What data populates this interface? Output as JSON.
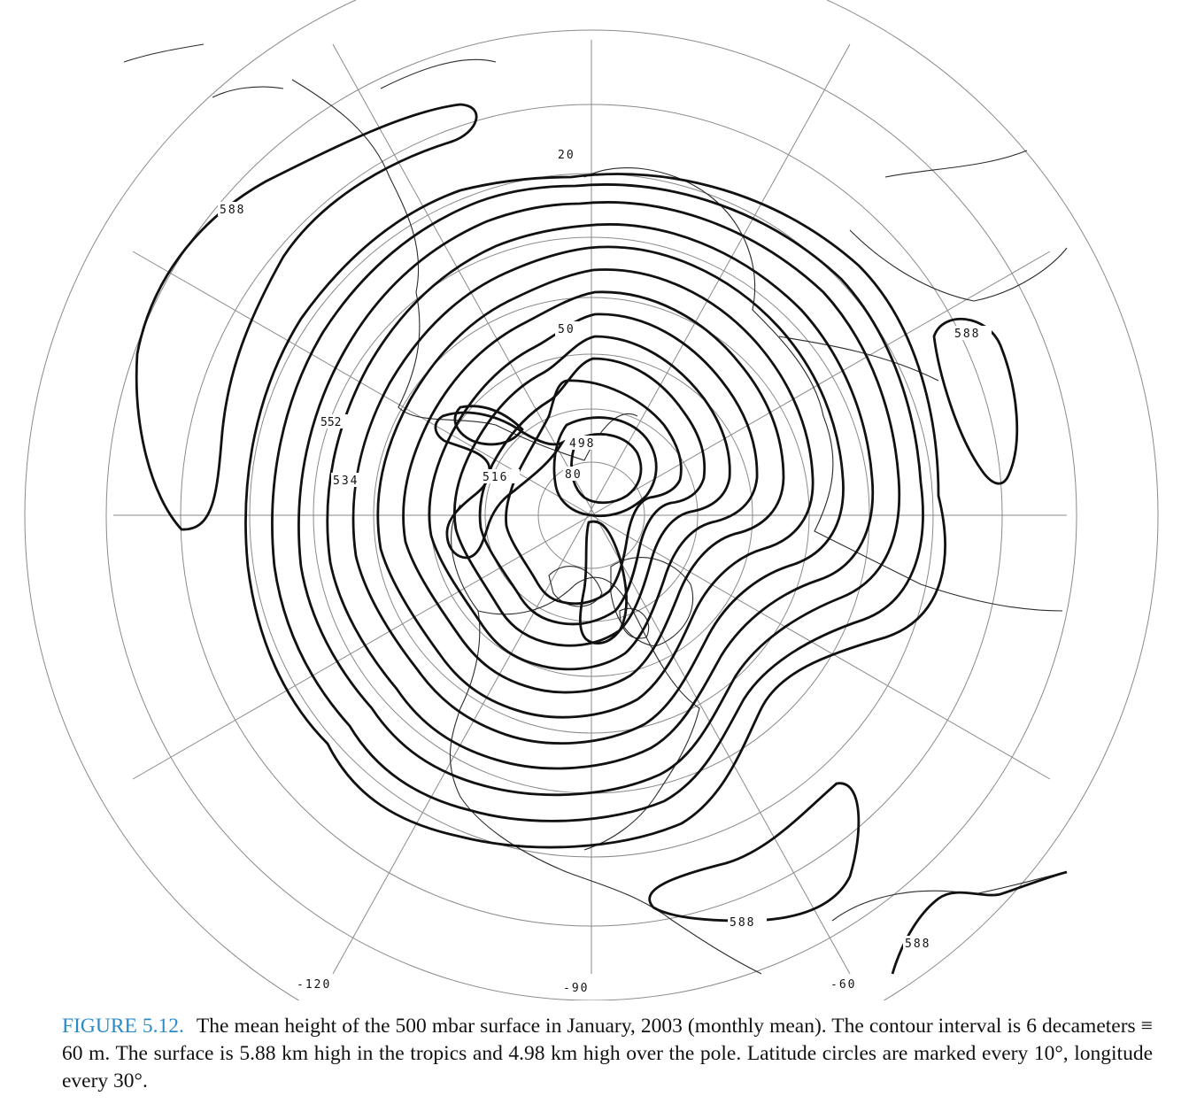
{
  "figure": {
    "number": "FIGURE 5.12.",
    "caption": "The mean height of the 500 mbar surface in January, 2003 (monthly mean). The contour interval is 6 decameters ≡ 60 m. The surface is 5.88 km high in the tropics and 4.98 km high over the pole. Latitude circles are marked every 10°, longitude every 30°."
  },
  "map": {
    "latitude_labels": [
      "20",
      "50",
      "80"
    ],
    "longitude_labels": [
      "-120",
      "-90",
      "-60"
    ],
    "contour_labels": [
      "588",
      "588",
      "588",
      "588",
      "552",
      "534",
      "516",
      "498"
    ],
    "colors": {
      "contour": "#111111",
      "grid": "#8a8a8a",
      "coast": "#2b2b2b",
      "caption_accent": "#2a8ac8"
    }
  }
}
